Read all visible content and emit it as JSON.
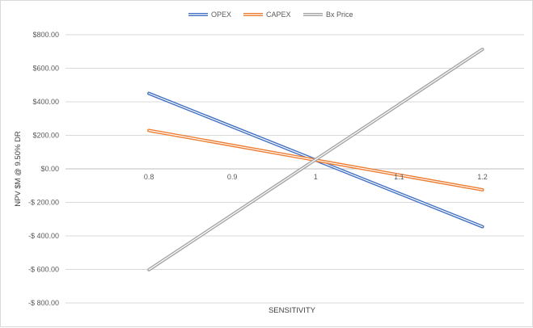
{
  "chart_data": {
    "type": "line",
    "title": "",
    "xlabel": "SENSITIVITY",
    "ylabel": "NPV $M @ 9.50% DR",
    "ylim": [
      -800,
      800
    ],
    "y_ticks": [
      800,
      600,
      400,
      200,
      0,
      -200,
      -400,
      -600,
      -800
    ],
    "y_tick_labels": [
      "$800.00",
      "$600.00",
      "$400.00",
      "$200.00",
      "$0.00",
      "-$ 200.00",
      "-$ 400.00",
      "-$ 600.00",
      "-$ 800.00"
    ],
    "xlim": [
      0.7,
      1.25
    ],
    "x_ticks": [
      0.8,
      0.9,
      1,
      1.1,
      1.2
    ],
    "x_tick_labels": [
      "0.8",
      "0.9",
      "1",
      "1.1",
      "1.2"
    ],
    "grid": "horizontal",
    "legend_position": "top",
    "series": [
      {
        "name": "OPEX",
        "color": "#4472C4",
        "x": [
          0.8,
          1.2
        ],
        "values": [
          450,
          -345
        ]
      },
      {
        "name": "CAPEX",
        "color": "#ED7D31",
        "x": [
          0.8,
          1.2
        ],
        "values": [
          229,
          -125
        ]
      },
      {
        "name": "Bx Price",
        "color": "#A5A5A5",
        "x": [
          0.8,
          1.2
        ],
        "values": [
          -602,
          713
        ]
      }
    ]
  }
}
